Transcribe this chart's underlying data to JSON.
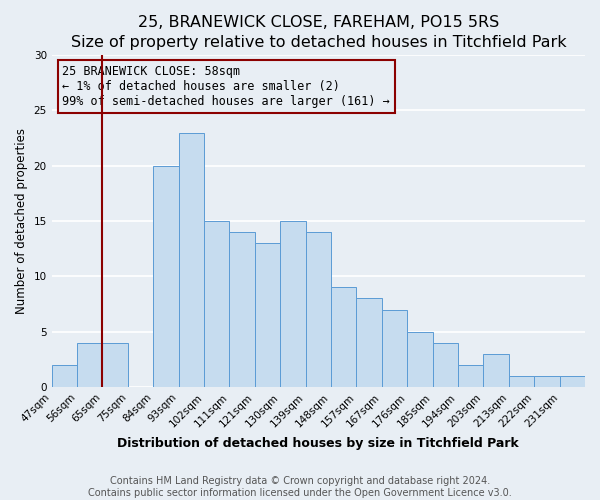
{
  "title": "25, BRANEWICK CLOSE, FAREHAM, PO15 5RS",
  "subtitle": "Size of property relative to detached houses in Titchfield Park",
  "xlabel": "Distribution of detached houses by size in Titchfield Park",
  "ylabel": "Number of detached properties",
  "bar_values": [
    2,
    4,
    4,
    0,
    20,
    23,
    15,
    14,
    13,
    15,
    14,
    9,
    8,
    7,
    5,
    4,
    2,
    3,
    1,
    1,
    1
  ],
  "bin_labels": [
    "47sqm",
    "56sqm",
    "65sqm",
    "75sqm",
    "84sqm",
    "93sqm",
    "102sqm",
    "111sqm",
    "121sqm",
    "130sqm",
    "139sqm",
    "148sqm",
    "157sqm",
    "167sqm",
    "176sqm",
    "185sqm",
    "194sqm",
    "203sqm",
    "213sqm",
    "222sqm",
    "231sqm"
  ],
  "bar_color": "#c6dcef",
  "bar_edge_color": "#5b9bd5",
  "vline_color": "#8b0000",
  "vline_x_index": 2,
  "annotation_text_line1": "25 BRANEWICK CLOSE: 58sqm",
  "annotation_text_line2": "← 1% of detached houses are smaller (2)",
  "annotation_text_line3": "99% of semi-detached houses are larger (161) →",
  "ylim": [
    0,
    30
  ],
  "yticks": [
    0,
    5,
    10,
    15,
    20,
    25,
    30
  ],
  "footer_line1": "Contains HM Land Registry data © Crown copyright and database right 2024.",
  "footer_line2": "Contains public sector information licensed under the Open Government Licence v3.0.",
  "background_color": "#e8eef4",
  "grid_color": "#ffffff",
  "title_fontsize": 11.5,
  "subtitle_fontsize": 9.5,
  "xlabel_fontsize": 9,
  "ylabel_fontsize": 8.5,
  "tick_fontsize": 7.5,
  "annotation_fontsize": 8.5,
  "footer_fontsize": 7
}
